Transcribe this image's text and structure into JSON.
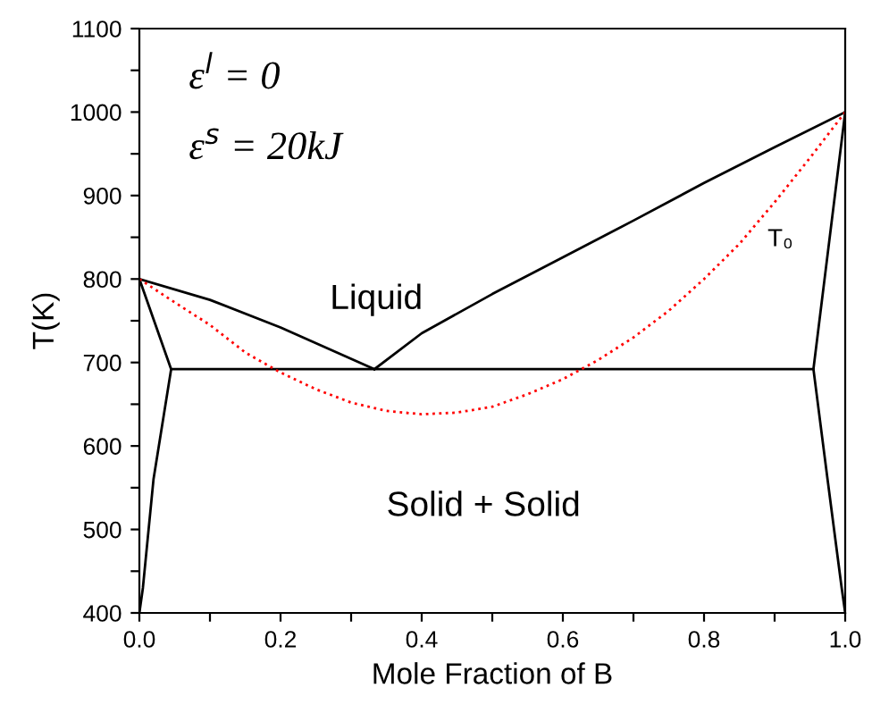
{
  "chart_data": {
    "type": "line",
    "xlabel": "Mole Fraction of B",
    "ylabel": "T(K)",
    "xlim": [
      0,
      1
    ],
    "ylim": [
      400,
      1100
    ],
    "xticks": [
      {
        "value": 0,
        "label": "0.0"
      },
      {
        "value": 0.1,
        "label": null
      },
      0.2,
      {
        "value": 0.3,
        "label": null
      },
      0.4,
      {
        "value": 0.5,
        "label": null
      },
      0.6,
      {
        "value": 0.7,
        "label": null
      },
      0.8,
      {
        "value": 0.9,
        "label": null
      },
      {
        "value": 1,
        "label": "1.0"
      }
    ],
    "yticks": [
      400,
      {
        "value": 450,
        "label": null
      },
      500,
      {
        "value": 550,
        "label": null
      },
      600,
      {
        "value": 650,
        "label": null
      },
      700,
      {
        "value": 750,
        "label": null
      },
      800,
      {
        "value": 850,
        "label": null
      },
      900,
      {
        "value": 950,
        "label": null
      },
      1000,
      {
        "value": 1050,
        "label": null
      },
      1100
    ],
    "grid": false,
    "legend": false,
    "marker": "none",
    "series": [
      {
        "color": "#000000",
        "line_style": "solid",
        "x": [
          0,
          0.1,
          0.2,
          0.333
        ],
        "values": [
          800,
          775,
          742,
          692
        ]
      },
      {
        "color": "#000000",
        "line_style": "solid",
        "x": [
          0.333,
          0.4,
          0.5,
          0.6,
          0.7,
          0.8,
          0.9,
          1
        ],
        "values": [
          692,
          735,
          782,
          826,
          870,
          915,
          958,
          1000
        ]
      },
      {
        "color": "#000000",
        "line_style": "solid",
        "x": [
          0,
          0.045,
          0.02,
          0.005,
          0
        ],
        "values": [
          800,
          692,
          560,
          430,
          400
        ]
      },
      {
        "color": "#000000",
        "line_style": "solid",
        "x": [
          1,
          0.955,
          0.975,
          0.995,
          1
        ],
        "values": [
          1000,
          692,
          560,
          430,
          400
        ]
      },
      {
        "color": "#000000",
        "line_style": "solid",
        "x": [
          0.045,
          0.955
        ],
        "values": [
          692,
          692
        ]
      },
      {
        "name": "T₀",
        "color": "#ff0000",
        "line_style": "dotted",
        "x": [
          0,
          0.05,
          0.1,
          0.15,
          0.2,
          0.25,
          0.3,
          0.35,
          0.4,
          0.45,
          0.5,
          0.55,
          0.6,
          0.65,
          0.7,
          0.75,
          0.8,
          0.85,
          0.9,
          0.95,
          1
        ],
        "values": [
          800,
          772,
          745,
          712,
          688,
          668,
          652,
          642,
          638,
          640,
          647,
          662,
          680,
          703,
          730,
          762,
          800,
          842,
          892,
          945,
          1000
        ]
      }
    ],
    "annotations": [
      "ε$^{l}$ = 0",
      "ε$^{s}$ = 20kJ",
      "Liquid",
      "Solid + Solid"
    ]
  }
}
